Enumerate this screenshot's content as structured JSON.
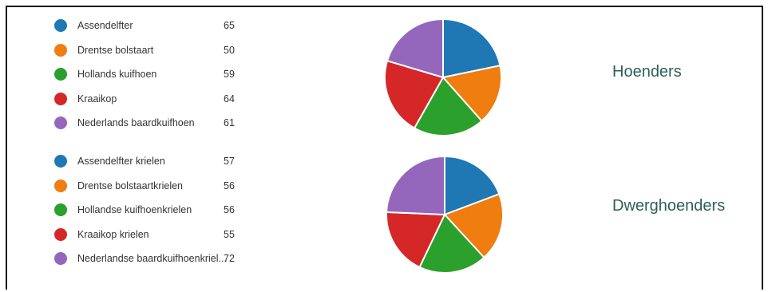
{
  "chart_data": [
    {
      "type": "pie",
      "title": "Hoenders",
      "categories": [
        "Assendelfter",
        "Drentse bolstaart",
        "Hollands kuifhoen",
        "Kraaikop",
        "Nederlands baardkuifhoen"
      ],
      "values": [
        65,
        50,
        59,
        64,
        61
      ],
      "colors": [
        "#1f77b4",
        "#ef7d0f",
        "#2ca02c",
        "#d62728",
        "#9467bd"
      ],
      "legend_position": "left"
    },
    {
      "type": "pie",
      "title": "Dwerghoenders",
      "categories": [
        "Assendelfter krielen",
        "Drentse bolstaartkrielen",
        "Hollandse kuifhoenkrielen",
        "Kraaikop krielen",
        "Nederlandse baardkuifhoenkriel..."
      ],
      "values": [
        57,
        56,
        56,
        55,
        72
      ],
      "colors": [
        "#1f77b4",
        "#ef7d0f",
        "#2ca02c",
        "#d62728",
        "#9467bd"
      ],
      "legend_position": "left"
    }
  ]
}
